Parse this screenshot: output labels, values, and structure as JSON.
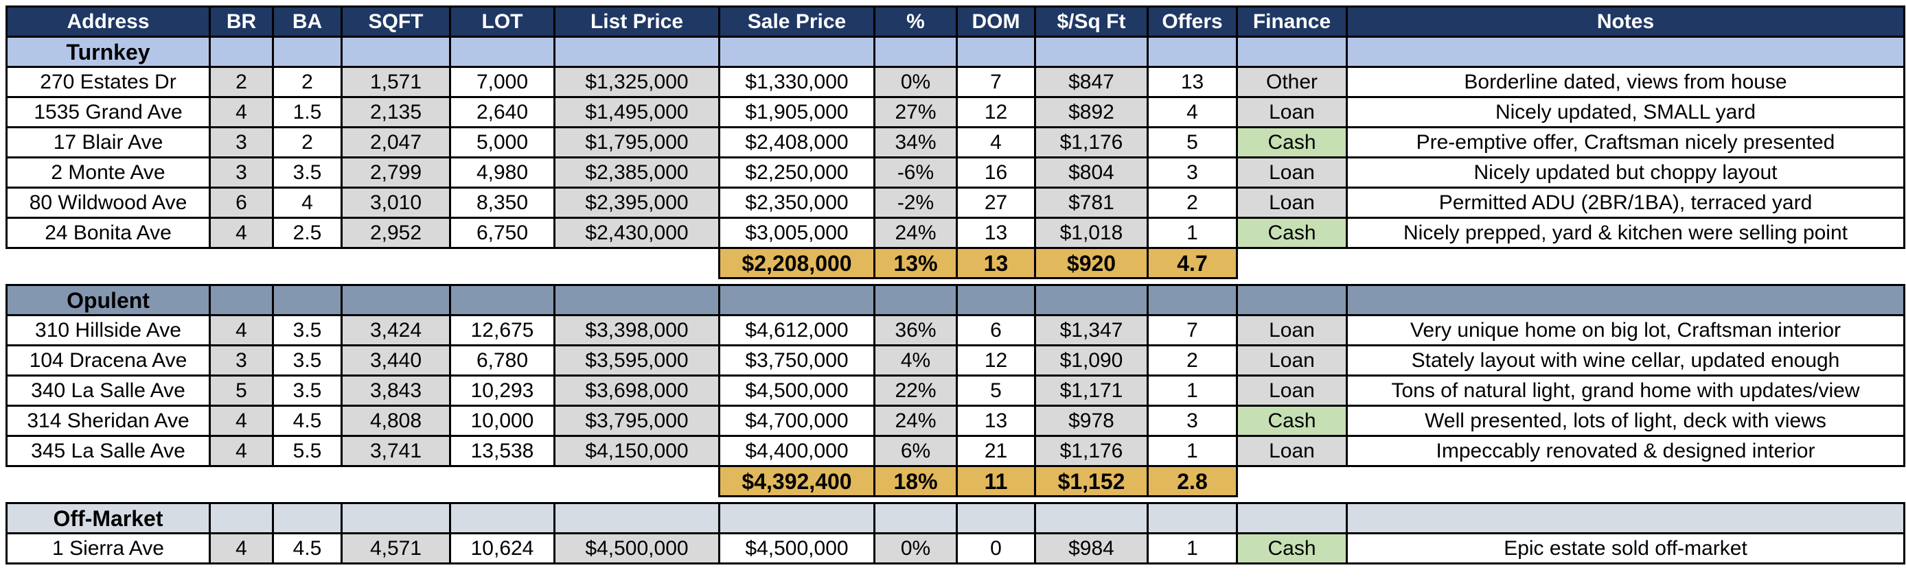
{
  "headers": [
    "Address",
    "BR",
    "BA",
    "SQFT",
    "LOT",
    "List Price",
    "Sale Price",
    "%",
    "DOM",
    "$/Sq Ft",
    "Offers",
    "Finance",
    "Notes"
  ],
  "sections": {
    "turnkey": {
      "label": "Turnkey",
      "rows": [
        {
          "address": "270 Estates Dr",
          "br": "2",
          "ba": "2",
          "sqft": "1,571",
          "lot": "7,000",
          "list": "$1,325,000",
          "sale": "$1,330,000",
          "pct": "0%",
          "dom": "7",
          "psf": "$847",
          "offers": "13",
          "finance": "Other",
          "notes": "Borderline dated, views from house"
        },
        {
          "address": "1535 Grand Ave",
          "br": "4",
          "ba": "1.5",
          "sqft": "2,135",
          "lot": "2,640",
          "list": "$1,495,000",
          "sale": "$1,905,000",
          "pct": "27%",
          "dom": "12",
          "psf": "$892",
          "offers": "4",
          "finance": "Loan",
          "notes": "Nicely updated, SMALL yard"
        },
        {
          "address": "17 Blair Ave",
          "br": "3",
          "ba": "2",
          "sqft": "2,047",
          "lot": "5,000",
          "list": "$1,795,000",
          "sale": "$2,408,000",
          "pct": "34%",
          "dom": "4",
          "psf": "$1,176",
          "offers": "5",
          "finance": "Cash",
          "notes": "Pre-emptive offer, Craftsman nicely presented"
        },
        {
          "address": "2 Monte Ave",
          "br": "3",
          "ba": "3.5",
          "sqft": "2,799",
          "lot": "4,980",
          "list": "$2,385,000",
          "sale": "$2,250,000",
          "pct": "-6%",
          "dom": "16",
          "psf": "$804",
          "offers": "3",
          "finance": "Loan",
          "notes": "Nicely updated but choppy layout"
        },
        {
          "address": "80 Wildwood Ave",
          "br": "6",
          "ba": "4",
          "sqft": "3,010",
          "lot": "8,350",
          "list": "$2,395,000",
          "sale": "$2,350,000",
          "pct": "-2%",
          "dom": "27",
          "psf": "$781",
          "offers": "2",
          "finance": "Loan",
          "notes": "Permitted ADU (2BR/1BA), terraced yard"
        },
        {
          "address": "24 Bonita Ave",
          "br": "4",
          "ba": "2.5",
          "sqft": "2,952",
          "lot": "6,750",
          "list": "$2,430,000",
          "sale": "$3,005,000",
          "pct": "24%",
          "dom": "13",
          "psf": "$1,018",
          "offers": "1",
          "finance": "Cash",
          "notes": "Nicely prepped, yard & kitchen were selling point"
        }
      ],
      "summary": {
        "sale": "$2,208,000",
        "pct": "13%",
        "dom": "13",
        "psf": "$920",
        "offers": "4.7"
      }
    },
    "opulent": {
      "label": "Opulent",
      "rows": [
        {
          "address": "310 Hillside Ave",
          "br": "4",
          "ba": "3.5",
          "sqft": "3,424",
          "lot": "12,675",
          "list": "$3,398,000",
          "sale": "$4,612,000",
          "pct": "36%",
          "dom": "6",
          "psf": "$1,347",
          "offers": "7",
          "finance": "Loan",
          "notes": "Very unique home on big lot, Craftsman interior"
        },
        {
          "address": "104 Dracena Ave",
          "br": "3",
          "ba": "3.5",
          "sqft": "3,440",
          "lot": "6,780",
          "list": "$3,595,000",
          "sale": "$3,750,000",
          "pct": "4%",
          "dom": "12",
          "psf": "$1,090",
          "offers": "2",
          "finance": "Loan",
          "notes": "Stately layout with wine cellar, updated enough"
        },
        {
          "address": "340 La Salle Ave",
          "br": "5",
          "ba": "3.5",
          "sqft": "3,843",
          "lot": "10,293",
          "list": "$3,698,000",
          "sale": "$4,500,000",
          "pct": "22%",
          "dom": "5",
          "psf": "$1,171",
          "offers": "1",
          "finance": "Loan",
          "notes": "Tons of natural light, grand home with updates/view"
        },
        {
          "address": "314 Sheridan Ave",
          "br": "4",
          "ba": "4.5",
          "sqft": "4,808",
          "lot": "10,000",
          "list": "$3,795,000",
          "sale": "$4,700,000",
          "pct": "24%",
          "dom": "13",
          "psf": "$978",
          "offers": "3",
          "finance": "Cash",
          "notes": "Well presented, lots of light, deck with views"
        },
        {
          "address": "345 La Salle Ave",
          "br": "4",
          "ba": "5.5",
          "sqft": "3,741",
          "lot": "13,538",
          "list": "$4,150,000",
          "sale": "$4,400,000",
          "pct": "6%",
          "dom": "21",
          "psf": "$1,176",
          "offers": "1",
          "finance": "Loan",
          "notes": "Impeccably renovated & designed interior"
        }
      ],
      "summary": {
        "sale": "$4,392,400",
        "pct": "18%",
        "dom": "11",
        "psf": "$1,152",
        "offers": "2.8"
      }
    },
    "offmarket": {
      "label": "Off-Market",
      "rows": [
        {
          "address": "1 Sierra Ave",
          "br": "4",
          "ba": "4.5",
          "sqft": "4,571",
          "lot": "10,624",
          "list": "$4,500,000",
          "sale": "$4,500,000",
          "pct": "0%",
          "dom": "0",
          "psf": "$984",
          "offers": "1",
          "finance": "Cash",
          "notes": "Epic estate sold off-market"
        }
      ]
    }
  },
  "colors": {
    "header_bg": "#1f3864",
    "turnkey_band": "#b4c6e7",
    "opulent_band": "#8497b0",
    "offmarket_band": "#d6dce4",
    "gray_col": "#d9d9d9",
    "cash": "#c6e0b4",
    "summary": "#e2b85c"
  }
}
